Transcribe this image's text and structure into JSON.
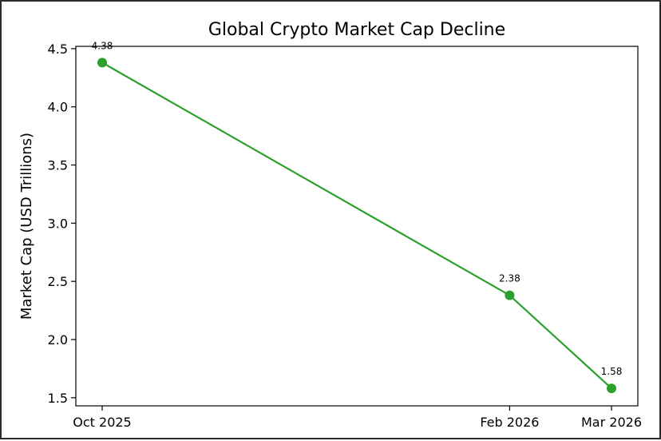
{
  "chart_data": {
    "type": "line",
    "title": "Global Crypto Market Cap Decline",
    "xlabel": "",
    "ylabel": "Market Cap (USD Trillions)",
    "categories": [
      "Oct 2025",
      "Feb 2026",
      "Mar 2026"
    ],
    "x_positions_months": [
      0,
      4,
      5
    ],
    "series": [
      {
        "values": [
          4.38,
          2.38,
          1.58
        ],
        "labels": [
          "4.38",
          "2.38",
          "1.58"
        ],
        "color": "#2ca02c"
      }
    ],
    "yticks": [
      "1.5",
      "2.0",
      "2.5",
      "3.0",
      "3.5",
      "4.0",
      "4.5"
    ],
    "ytick_values": [
      1.5,
      2.0,
      2.5,
      3.0,
      3.5,
      4.0,
      4.5
    ],
    "ylim": [
      1.43,
      4.52
    ],
    "grid": false,
    "legend": "none"
  }
}
